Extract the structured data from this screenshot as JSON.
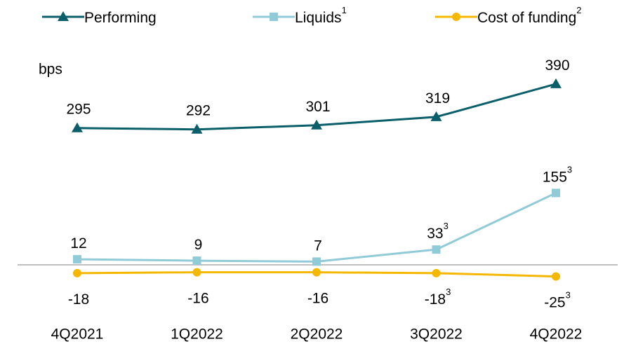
{
  "chart_data": {
    "type": "line",
    "y_label": "bps",
    "categories": [
      "4Q2021",
      "1Q2022",
      "2Q2022",
      "3Q2022",
      "4Q2022"
    ],
    "series": [
      {
        "name": "Performing",
        "color": "#0b5f6b",
        "marker": "triangle",
        "values": [
          295,
          292,
          301,
          319,
          390
        ]
      },
      {
        "name": "Liquids",
        "name_note": "1",
        "color": "#92cbd8",
        "marker": "square",
        "values": [
          12,
          9,
          7,
          33,
          155
        ],
        "value_notes": [
          null,
          null,
          null,
          "3",
          "3"
        ]
      },
      {
        "name": "Cost of funding",
        "name_note": "2",
        "color": "#f5b800",
        "marker": "circle",
        "values": [
          -18,
          -16,
          -16,
          -18,
          -25
        ],
        "value_notes": [
          null,
          null,
          null,
          "3",
          "3"
        ]
      }
    ],
    "ylim": [
      -40,
      420
    ]
  }
}
